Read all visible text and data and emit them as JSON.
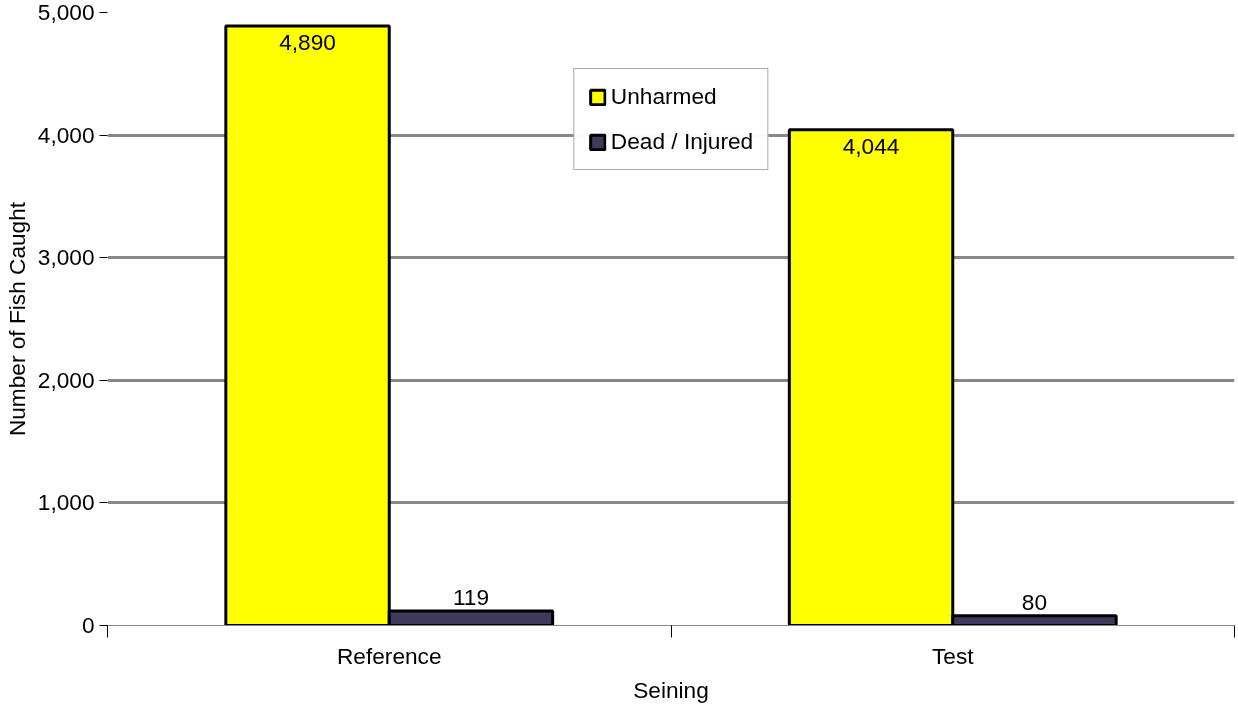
{
  "chart_data": {
    "type": "bar",
    "xlabel": "Seining",
    "ylabel": "Number of Fish Caught",
    "categories": [
      "Reference",
      "Test"
    ],
    "series": [
      {
        "name": "Unharmed",
        "color": "#ffff00",
        "values": [
          4890,
          4044
        ],
        "value_labels": [
          "4,890",
          "4,044"
        ]
      },
      {
        "name": "Dead / Injured",
        "color": "#3d3a5c",
        "values": [
          119,
          80
        ],
        "value_labels": [
          "119",
          "80"
        ]
      }
    ],
    "ylim": [
      0,
      5000
    ],
    "yticks": [
      0,
      {
        "value": 1000,
        "label": "1,000"
      },
      {
        "value": 2000,
        "label": "2,000"
      },
      {
        "value": 3000,
        "label": "3,000"
      },
      {
        "value": 4000,
        "label": "4,000"
      },
      {
        "value": 5000,
        "label": "5,000"
      }
    ],
    "grid": "y",
    "legend": "top"
  }
}
